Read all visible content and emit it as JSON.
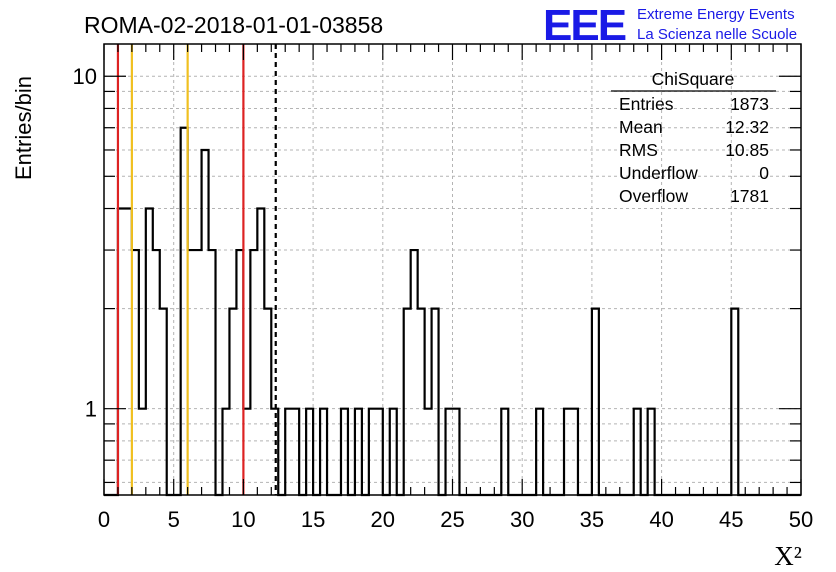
{
  "chart_data": {
    "type": "histogram",
    "title": "ROMA-02-2018-01-01-03858",
    "xlabel": "X²",
    "ylabel": "Entries/bin",
    "xlim": [
      0,
      50
    ],
    "ylim": [
      0.55,
      12.5
    ],
    "y_scale": "log",
    "grid": true,
    "bin_width": 0.5,
    "x_ticks": [
      0,
      5,
      10,
      15,
      20,
      25,
      30,
      35,
      40,
      45,
      50
    ],
    "y_ticks": [
      1,
      10
    ],
    "bins": [
      {
        "x": 1.0,
        "count": 4
      },
      {
        "x": 1.5,
        "count": 4
      },
      {
        "x": 2.0,
        "count": 3
      },
      {
        "x": 2.5,
        "count": 1
      },
      {
        "x": 3.0,
        "count": 4
      },
      {
        "x": 3.5,
        "count": 3
      },
      {
        "x": 4.0,
        "count": 2
      },
      {
        "x": 4.5,
        "count": 0
      },
      {
        "x": 5.0,
        "count": 0
      },
      {
        "x": 5.5,
        "count": 7
      },
      {
        "x": 6.0,
        "count": 3
      },
      {
        "x": 6.5,
        "count": 3
      },
      {
        "x": 7.0,
        "count": 6
      },
      {
        "x": 7.5,
        "count": 3
      },
      {
        "x": 8.0,
        "count": 0
      },
      {
        "x": 8.5,
        "count": 1
      },
      {
        "x": 9.0,
        "count": 2
      },
      {
        "x": 9.5,
        "count": 3
      },
      {
        "x": 10.0,
        "count": 1
      },
      {
        "x": 10.5,
        "count": 3
      },
      {
        "x": 11.0,
        "count": 4
      },
      {
        "x": 11.5,
        "count": 2
      },
      {
        "x": 12.0,
        "count": 1
      },
      {
        "x": 12.5,
        "count": 0
      },
      {
        "x": 13.0,
        "count": 1
      },
      {
        "x": 13.5,
        "count": 1
      },
      {
        "x": 14.0,
        "count": 0
      },
      {
        "x": 14.5,
        "count": 1
      },
      {
        "x": 15.0,
        "count": 0
      },
      {
        "x": 15.5,
        "count": 1
      },
      {
        "x": 16.0,
        "count": 0
      },
      {
        "x": 16.5,
        "count": 0
      },
      {
        "x": 17.0,
        "count": 1
      },
      {
        "x": 17.5,
        "count": 0
      },
      {
        "x": 18.0,
        "count": 1
      },
      {
        "x": 18.5,
        "count": 0
      },
      {
        "x": 19.0,
        "count": 1
      },
      {
        "x": 19.5,
        "count": 1
      },
      {
        "x": 20.0,
        "count": 0
      },
      {
        "x": 20.5,
        "count": 1
      },
      {
        "x": 21.0,
        "count": 0
      },
      {
        "x": 21.5,
        "count": 2
      },
      {
        "x": 22.0,
        "count": 3
      },
      {
        "x": 22.5,
        "count": 2
      },
      {
        "x": 23.0,
        "count": 1
      },
      {
        "x": 23.5,
        "count": 2
      },
      {
        "x": 24.0,
        "count": 0
      },
      {
        "x": 24.5,
        "count": 1
      },
      {
        "x": 25.0,
        "count": 1
      },
      {
        "x": 28.5,
        "count": 1
      },
      {
        "x": 31.0,
        "count": 1
      },
      {
        "x": 33.0,
        "count": 1
      },
      {
        "x": 33.5,
        "count": 1
      },
      {
        "x": 35.0,
        "count": 2
      },
      {
        "x": 38.0,
        "count": 1
      },
      {
        "x": 39.0,
        "count": 1
      },
      {
        "x": 45.0,
        "count": 2
      }
    ],
    "vertical_lines": [
      {
        "x": 1,
        "color": "#dd2222",
        "style": "solid"
      },
      {
        "x": 2,
        "color": "#f0c020",
        "style": "solid"
      },
      {
        "x": 6,
        "color": "#f0c020",
        "style": "solid"
      },
      {
        "x": 10,
        "color": "#dd2222",
        "style": "solid"
      },
      {
        "x": 12.32,
        "color": "#000000",
        "style": "dashed"
      }
    ],
    "stats_box": {
      "name": "ChiSquare",
      "rows": [
        {
          "label": "Entries",
          "value": "1873"
        },
        {
          "label": "Mean",
          "value": "12.32"
        },
        {
          "label": "RMS",
          "value": "10.85"
        },
        {
          "label": "Underflow",
          "value": "0"
        },
        {
          "label": "Overflow",
          "value": "1781"
        }
      ]
    }
  },
  "logo": {
    "mark": "EEE",
    "line1": "Extreme Energy Events",
    "line2": "La Scienza nelle Scuole",
    "color": "#1a1ae6"
  }
}
